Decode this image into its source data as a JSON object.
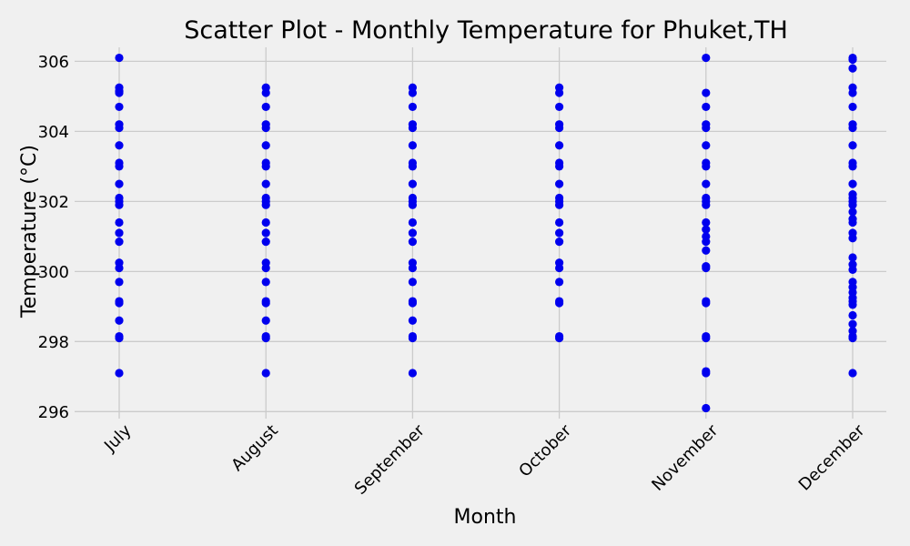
{
  "chart_data": {
    "type": "scatter",
    "title": "Scatter Plot - Monthly Temperature for Phuket,TH",
    "xlabel": "Month",
    "ylabel": "Temperature (°C)",
    "categories": [
      "July",
      "August",
      "September",
      "October",
      "November",
      "December"
    ],
    "ylim": [
      295.8,
      306.4
    ],
    "yticks": [
      296,
      298,
      300,
      302,
      304,
      306
    ],
    "grid": true,
    "marker_color": "#0000ee",
    "background_color": "#f0f0f0",
    "series": [
      {
        "category": "July",
        "values": [
          306.1,
          305.25,
          305.15,
          305.1,
          304.7,
          304.2,
          304.1,
          303.6,
          303.1,
          303.0,
          302.5,
          302.1,
          302.0,
          301.9,
          301.4,
          301.1,
          300.85,
          300.25,
          300.1,
          299.7,
          299.15,
          299.1,
          298.6,
          298.15,
          298.1,
          297.1
        ]
      },
      {
        "category": "August",
        "values": [
          305.25,
          305.1,
          304.7,
          304.2,
          304.1,
          303.6,
          303.1,
          303.0,
          302.5,
          302.1,
          302.0,
          301.9,
          301.4,
          301.1,
          300.85,
          300.25,
          300.1,
          299.7,
          299.15,
          299.1,
          298.6,
          298.15,
          298.1,
          297.1
        ]
      },
      {
        "category": "September",
        "values": [
          305.25,
          305.1,
          304.7,
          304.2,
          304.1,
          303.6,
          303.1,
          303.0,
          302.5,
          302.1,
          302.0,
          301.9,
          301.4,
          301.1,
          300.85,
          300.25,
          300.1,
          299.7,
          299.15,
          299.1,
          298.6,
          298.15,
          298.1,
          297.1
        ]
      },
      {
        "category": "October",
        "values": [
          305.25,
          305.1,
          304.7,
          304.2,
          304.1,
          303.6,
          303.1,
          303.0,
          302.5,
          302.1,
          302.0,
          301.9,
          301.4,
          301.1,
          300.85,
          300.25,
          300.1,
          299.7,
          299.15,
          299.1,
          298.15,
          298.1
        ]
      },
      {
        "category": "November",
        "values": [
          306.1,
          305.1,
          304.7,
          304.2,
          304.1,
          303.6,
          303.1,
          303.0,
          302.5,
          302.1,
          302.0,
          301.9,
          301.4,
          301.2,
          301.0,
          300.85,
          300.6,
          300.15,
          300.1,
          299.15,
          299.1,
          298.15,
          298.1,
          297.15,
          297.1,
          296.1
        ]
      },
      {
        "category": "December",
        "values": [
          306.1,
          306.05,
          305.8,
          305.25,
          305.1,
          304.7,
          304.2,
          304.1,
          303.6,
          303.1,
          303.0,
          302.5,
          302.2,
          302.1,
          302.0,
          301.9,
          301.7,
          301.5,
          301.4,
          301.1,
          300.95,
          300.4,
          300.2,
          300.05,
          299.7,
          299.55,
          299.4,
          299.25,
          299.15,
          299.05,
          298.75,
          298.5,
          298.3,
          298.15,
          298.1,
          297.1
        ]
      }
    ]
  }
}
